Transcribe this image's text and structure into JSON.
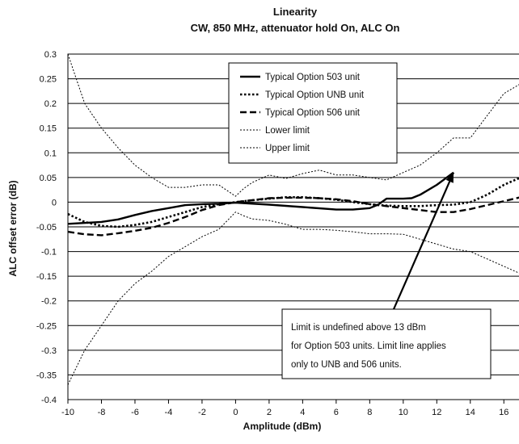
{
  "chart_data": {
    "type": "line",
    "title": "Linearity",
    "subtitle": "CW, 850 MHz, attenuator hold On, ALC On",
    "xlabel": "Amplitude (dBm)",
    "ylabel": "ALC offset error (dB)",
    "xlim": [
      -10,
      17
    ],
    "ylim": [
      -0.4,
      0.3
    ],
    "x_ticks": [
      "-10",
      "-8",
      "-6",
      "-4",
      "-2",
      "0",
      "2",
      "4",
      "6",
      "8",
      "10",
      "12",
      "14",
      "16"
    ],
    "y_ticks": [
      "0.3",
      "0.25",
      "0.2",
      "0.15",
      "0.1",
      "0.05",
      "0",
      "-0.05",
      "-0.1",
      "-0.15",
      "-0.2",
      "-0.25",
      "-0.3",
      "-0.35",
      "-0.4"
    ],
    "grid": "horizontal",
    "legend_position": "top-center",
    "series": [
      {
        "name": "Typical Option 503 unit",
        "style": "solid-thick",
        "x": [
          -10,
          -8,
          -7,
          -6,
          -5,
          -4,
          -3,
          -2,
          -1,
          0,
          2,
          4,
          6,
          7,
          8,
          8.5,
          9,
          10,
          10.5,
          11,
          12,
          13
        ],
        "y": [
          -0.044,
          -0.04,
          -0.035,
          -0.026,
          -0.018,
          -0.012,
          -0.006,
          -0.004,
          -0.003,
          -0.001,
          -0.005,
          -0.01,
          -0.015,
          -0.015,
          -0.012,
          -0.005,
          0.007,
          0.007,
          0.008,
          0.015,
          0.035,
          0.06
        ]
      },
      {
        "name": "Typical Option UNB unit",
        "style": "dotted-thick",
        "x": [
          -10,
          -9,
          -8,
          -7,
          -6,
          -5,
          -4,
          -3,
          -2,
          -1,
          0,
          1,
          2,
          3,
          4,
          5,
          6,
          7,
          8,
          9,
          10,
          11,
          12,
          13,
          14,
          15,
          16,
          17
        ],
        "y": [
          -0.024,
          -0.04,
          -0.048,
          -0.05,
          -0.046,
          -0.04,
          -0.03,
          -0.02,
          -0.01,
          -0.004,
          0.0,
          0.004,
          0.007,
          0.01,
          0.01,
          0.008,
          0.005,
          0.0,
          -0.004,
          -0.007,
          -0.008,
          -0.008,
          -0.006,
          -0.005,
          0.0,
          0.015,
          0.035,
          0.05
        ]
      },
      {
        "name": "Typical Option 506 unit",
        "style": "dashed-thick",
        "x": [
          -10,
          -9,
          -8,
          -7,
          -6,
          -5,
          -4,
          -3,
          -2,
          -1,
          0,
          1,
          2,
          3,
          4,
          5,
          6,
          7,
          8,
          9,
          10,
          11,
          12,
          13,
          14,
          15,
          16,
          17
        ],
        "y": [
          -0.06,
          -0.065,
          -0.067,
          -0.063,
          -0.058,
          -0.052,
          -0.042,
          -0.03,
          -0.016,
          -0.006,
          0.0,
          0.004,
          0.008,
          0.009,
          0.009,
          0.008,
          0.006,
          0.002,
          -0.004,
          -0.008,
          -0.012,
          -0.016,
          -0.02,
          -0.02,
          -0.014,
          -0.006,
          0.002,
          0.01
        ]
      },
      {
        "name": "Lower limit",
        "style": "dotted-thin",
        "x": [
          -10,
          -9,
          -8,
          -7,
          -6,
          -5,
          -4,
          -3,
          -2,
          -1,
          0,
          0.5,
          1,
          2,
          3,
          4,
          5,
          6,
          7,
          8,
          9,
          10,
          11,
          12,
          13,
          14,
          15,
          16,
          17
        ],
        "y": [
          -0.37,
          -0.3,
          -0.25,
          -0.2,
          -0.165,
          -0.14,
          -0.11,
          -0.09,
          -0.07,
          -0.055,
          -0.02,
          -0.028,
          -0.034,
          -0.037,
          -0.045,
          -0.055,
          -0.055,
          -0.057,
          -0.06,
          -0.064,
          -0.064,
          -0.065,
          -0.075,
          -0.085,
          -0.095,
          -0.1,
          -0.115,
          -0.13,
          -0.145
        ]
      },
      {
        "name": "Upper limit",
        "style": "dotted-thin",
        "x": [
          -10,
          -9,
          -8,
          -7,
          -6,
          -5,
          -4,
          -3,
          -2,
          -1,
          0,
          0.5,
          1,
          2,
          3,
          4,
          5,
          6,
          7,
          8,
          9,
          10,
          11,
          12,
          13,
          14,
          15,
          16,
          17
        ],
        "y": [
          0.3,
          0.2,
          0.15,
          0.11,
          0.075,
          0.05,
          0.03,
          0.03,
          0.035,
          0.035,
          0.012,
          0.028,
          0.04,
          0.055,
          0.048,
          0.058,
          0.065,
          0.055,
          0.055,
          0.05,
          0.045,
          0.06,
          0.075,
          0.1,
          0.13,
          0.13,
          0.175,
          0.22,
          0.24
        ]
      }
    ],
    "annotation": {
      "lines": [
        "Limit is undefined above 13 dBm",
        "for Option 503 units. Limit line applies",
        "only to UNB and 506 units."
      ],
      "arrow_to": [
        13,
        0.06
      ]
    }
  }
}
